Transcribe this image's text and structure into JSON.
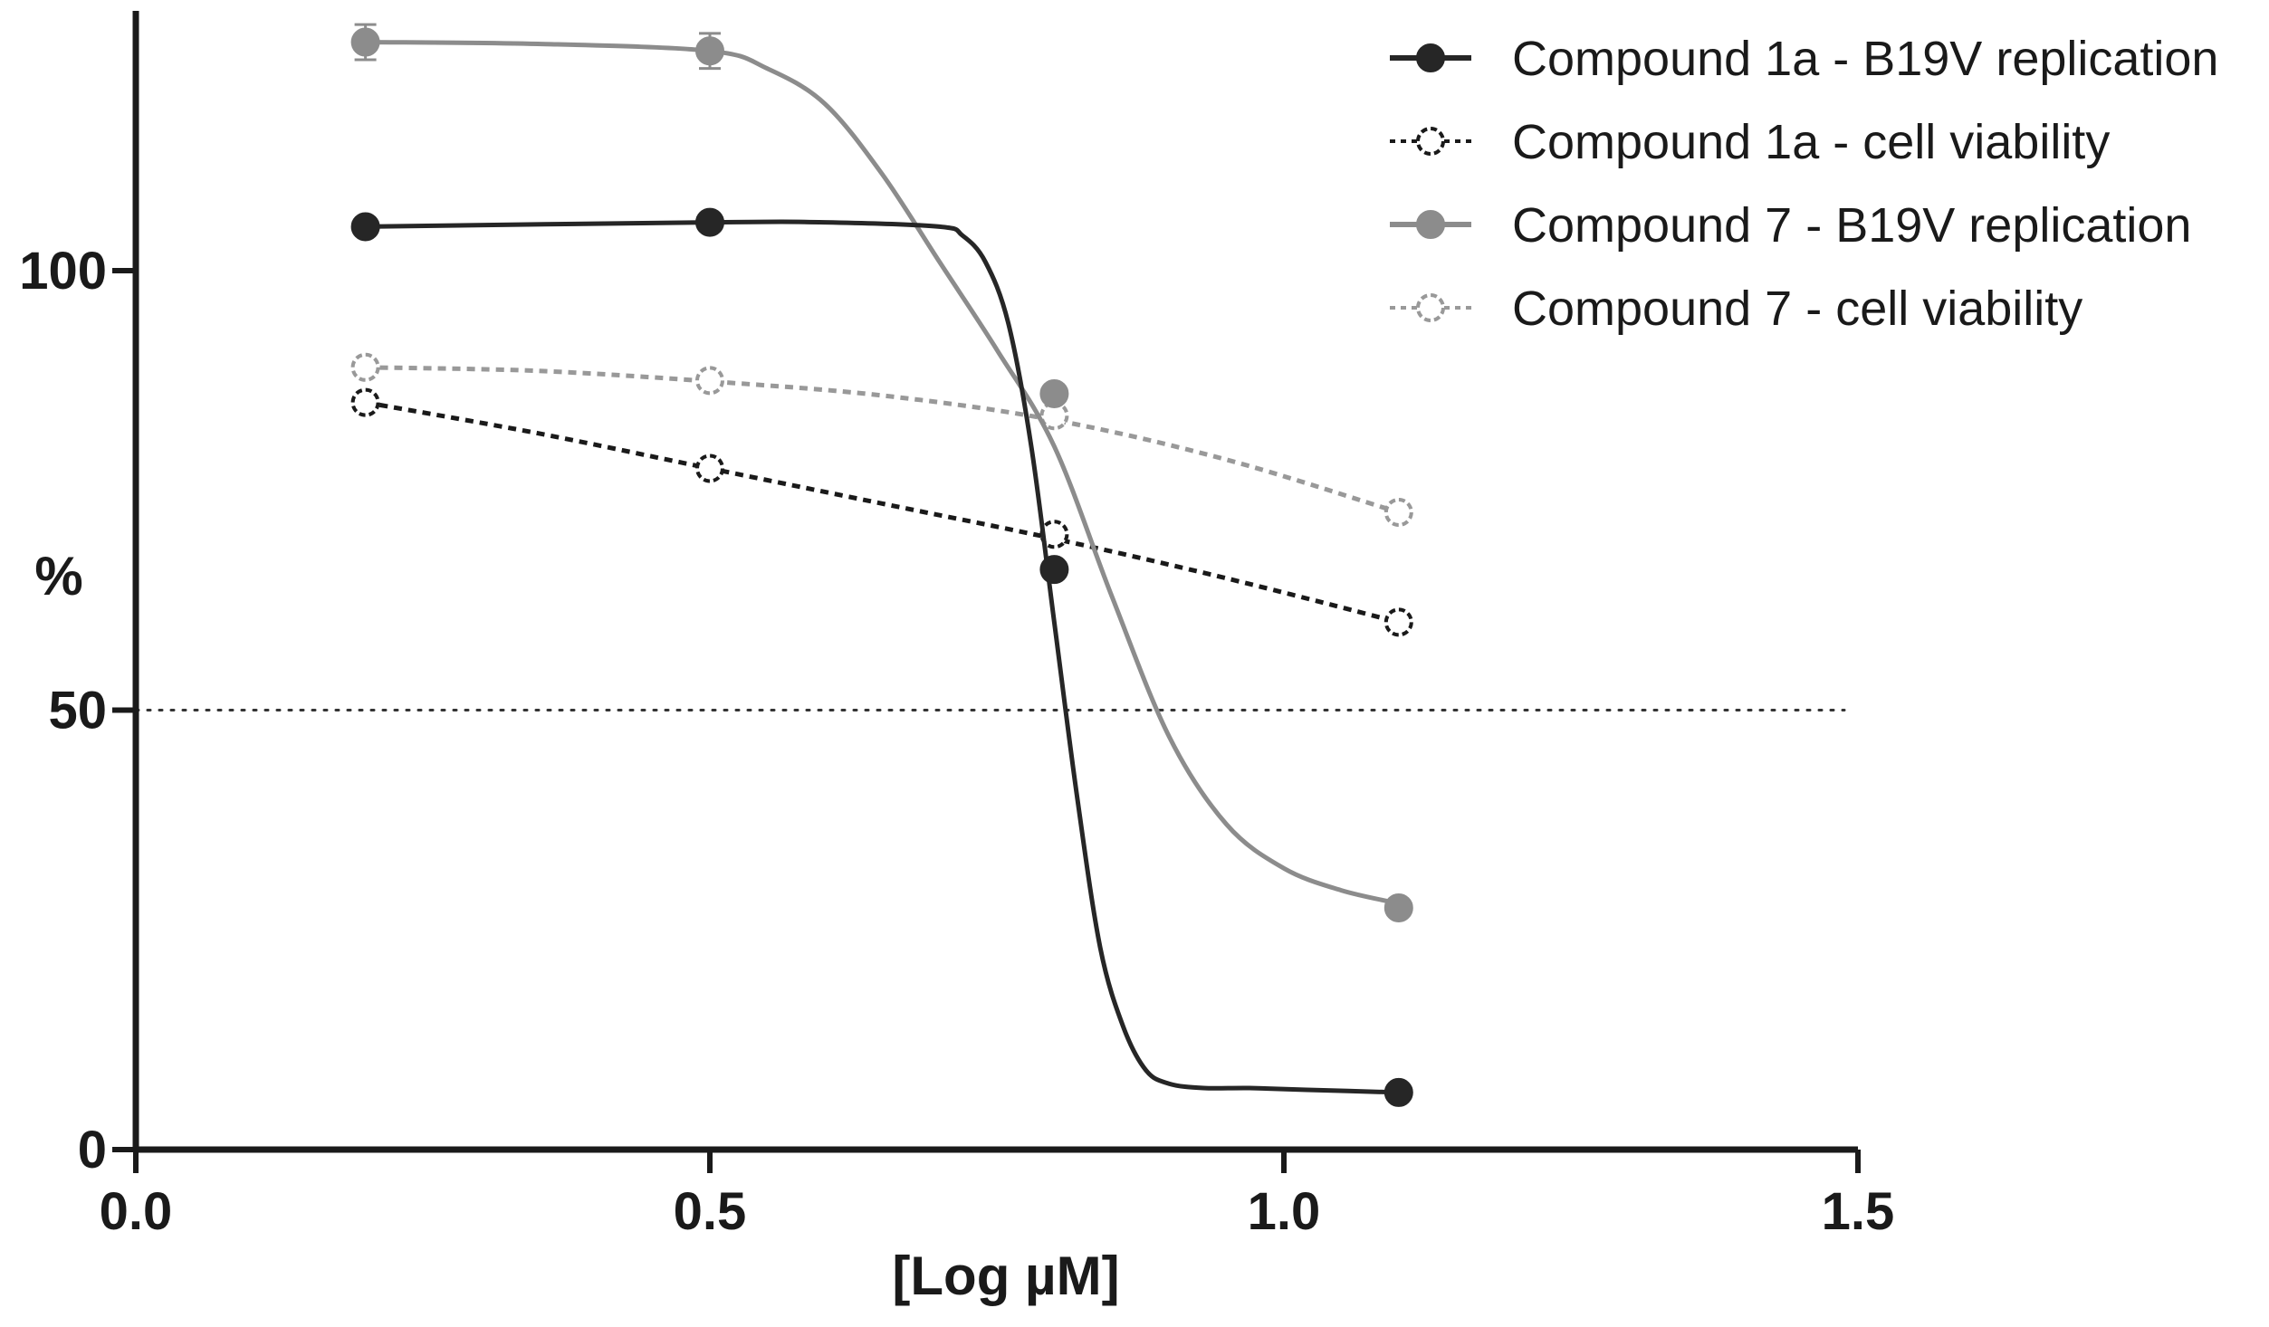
{
  "chart_data": {
    "type": "line",
    "title": "",
    "xlabel": "[Log µM]",
    "ylabel": "%",
    "xlim": [
      0.0,
      1.5
    ],
    "ylim": [
      0,
      130
    ],
    "x_ticks": [
      0.0,
      0.5,
      1.0,
      1.5
    ],
    "x_tick_labels": [
      "0.0",
      "0.5",
      "1.0",
      "1.5"
    ],
    "y_ticks": [
      0,
      50,
      100
    ],
    "y_tick_labels": [
      "0",
      "50",
      "100"
    ],
    "grid": false,
    "legend_position": "top-right",
    "reference_line": {
      "y": 50,
      "style": "dotted"
    },
    "series": [
      {
        "name": "Compound 1a - B19V replication",
        "color": "#262626",
        "marker": "filled",
        "line": "solid",
        "x": [
          0.2,
          0.5,
          0.8,
          1.1
        ],
        "y": [
          105,
          105.5,
          66,
          6.5
        ],
        "curve_x": [
          0.2,
          0.5,
          0.6,
          0.7,
          0.72,
          0.74,
          0.76,
          0.78,
          0.8,
          0.82,
          0.84,
          0.86,
          0.88,
          0.9,
          0.93,
          0.97,
          1.02,
          1.1
        ],
        "curve_y": [
          105,
          105.5,
          105.5,
          105,
          104,
          101,
          94,
          80,
          60,
          40,
          23,
          14,
          9,
          7.5,
          7,
          7,
          6.8,
          6.5
        ]
      },
      {
        "name": "Compound 1a - cell viability",
        "color": "#1a1a1a",
        "marker": "open",
        "line": "dashed",
        "x": [
          0.2,
          0.5,
          0.8,
          1.1
        ],
        "y": [
          85,
          77.5,
          70,
          60
        ],
        "curve_x": [
          0.2,
          0.35,
          0.5,
          0.65,
          0.8,
          0.95,
          1.1
        ],
        "curve_y": [
          85,
          81.5,
          77.5,
          73.5,
          69.5,
          65,
          60
        ]
      },
      {
        "name": "Compound  7 - B19V replication",
        "color": "#8c8c8c",
        "marker": "filled",
        "line": "solid",
        "x": [
          0.2,
          0.5,
          0.8,
          1.1
        ],
        "y": [
          126,
          125,
          86,
          27.5
        ],
        "error": [
          2,
          2,
          0,
          0
        ],
        "curve_x": [
          0.2,
          0.35,
          0.5,
          0.55,
          0.6,
          0.65,
          0.7,
          0.75,
          0.8,
          0.85,
          0.9,
          0.95,
          1.0,
          1.05,
          1.1
        ],
        "curve_y": [
          126,
          125.8,
          125,
          123,
          119,
          111,
          101,
          91,
          80,
          63,
          47,
          37,
          32,
          29.5,
          28
        ]
      },
      {
        "name": "Compound  7 - cell viability",
        "color": "#999999",
        "marker": "open",
        "line": "dashed",
        "x": [
          0.2,
          0.5,
          0.8,
          1.1
        ],
        "y": [
          89,
          87.5,
          83.5,
          72.5
        ],
        "curve_x": [
          0.2,
          0.35,
          0.5,
          0.65,
          0.8,
          0.95,
          1.1
        ],
        "curve_y": [
          89,
          88.6,
          87.4,
          85.8,
          83,
          78.5,
          72.5
        ]
      }
    ]
  }
}
